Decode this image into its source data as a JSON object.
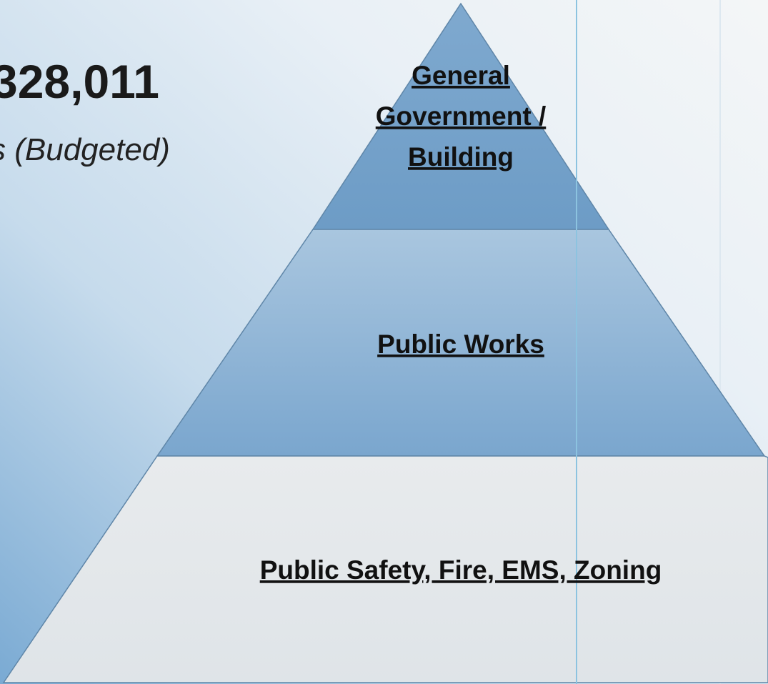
{
  "header": {
    "amount": "328,011",
    "subtitle": "s (Budgeted)"
  },
  "tiers": [
    {
      "lines": [
        "General",
        "Government /",
        "Building"
      ]
    },
    {
      "lines": [
        "Public Works"
      ]
    },
    {
      "lines": [
        "Public Safety, Fire, EMS, Zoning"
      ]
    }
  ]
}
